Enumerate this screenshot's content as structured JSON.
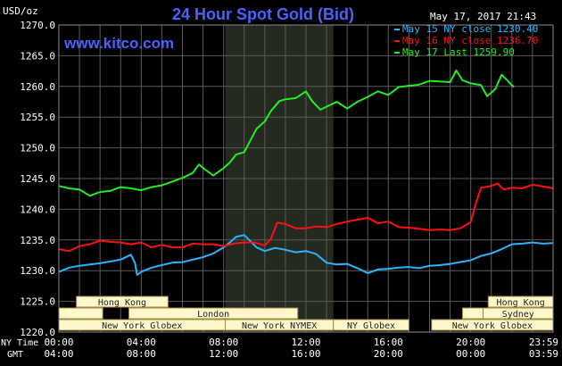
{
  "title": "24 Hour Spot Gold (Bid)",
  "website": "www.kitco.com",
  "timestamp": "May 17, 2017 21:43",
  "colors": {
    "background": "#000000",
    "grid": "#5a5a5a",
    "title": "#4a62ff",
    "website": "#4a62ff",
    "axis_text": "#ffffff",
    "nymex_shade": "#252a20",
    "market_box_fill": "#fff7cc",
    "market_box_stroke": "#a08a40"
  },
  "chart_data": {
    "type": "line",
    "ylabel": "USD/oz",
    "ylim": [
      1220.0,
      1270.0
    ],
    "yticks": [
      "1220.0",
      "1225.0",
      "1230.0",
      "1235.0",
      "1240.0",
      "1245.0",
      "1250.0",
      "1255.0",
      "1260.0",
      "1265.0",
      "1270.0"
    ],
    "x_range_hours": [
      0,
      24
    ],
    "x_row1_label": "NY Time",
    "x_row2_label": "GMT",
    "x_ticks_ny": [
      "00:00",
      "04:00",
      "08:00",
      "12:00",
      "16:00",
      "20:00",
      "23:59"
    ],
    "x_ticks_gmt": [
      "04:00",
      "08:00",
      "12:00",
      "16:00",
      "20:00",
      "00:00",
      "03:59"
    ],
    "grid": true,
    "legend_position": "top-right",
    "series": [
      {
        "name": "May 15 NY close 1230.40",
        "color": "#2ab4ff",
        "points": [
          [
            0,
            1229.8
          ],
          [
            0.5,
            1230.5
          ],
          [
            1,
            1230.8
          ],
          [
            1.5,
            1231
          ],
          [
            2,
            1231.2
          ],
          [
            2.5,
            1231.5
          ],
          [
            3,
            1231.8
          ],
          [
            3.5,
            1232.6
          ],
          [
            3.7,
            1231.2
          ],
          [
            3.8,
            1229.3
          ],
          [
            4,
            1229.8
          ],
          [
            4.5,
            1230.5
          ],
          [
            5,
            1230.9
          ],
          [
            5.5,
            1231.3
          ],
          [
            6,
            1231.4
          ],
          [
            6.5,
            1231.8
          ],
          [
            7,
            1232.2
          ],
          [
            7.5,
            1232.8
          ],
          [
            8,
            1233.8
          ],
          [
            8.3,
            1234.6
          ],
          [
            8.6,
            1235.5
          ],
          [
            9,
            1235.8
          ],
          [
            9.3,
            1234.8
          ],
          [
            9.6,
            1233.8
          ],
          [
            10,
            1233.2
          ],
          [
            10.5,
            1233.7
          ],
          [
            11,
            1233.4
          ],
          [
            11.5,
            1233.0
          ],
          [
            12,
            1233.2
          ],
          [
            12.5,
            1232.7
          ],
          [
            13,
            1231.3
          ],
          [
            13.5,
            1231.0
          ],
          [
            14,
            1231.1
          ],
          [
            14.5,
            1230.4
          ],
          [
            15,
            1229.6
          ],
          [
            15.5,
            1230.2
          ],
          [
            16,
            1230.3
          ],
          [
            16.5,
            1230.5
          ],
          [
            17,
            1230.6
          ],
          [
            17.5,
            1230.4
          ],
          [
            18,
            1230.8
          ],
          [
            18.5,
            1230.9
          ],
          [
            19,
            1231.1
          ],
          [
            19.5,
            1231.4
          ],
          [
            20,
            1231.7
          ],
          [
            20.5,
            1232.4
          ],
          [
            21,
            1232.8
          ],
          [
            21.5,
            1233.5
          ],
          [
            22,
            1234.3
          ],
          [
            22.5,
            1234.4
          ],
          [
            23,
            1234.6
          ],
          [
            23.5,
            1234.4
          ],
          [
            24,
            1234.5
          ]
        ]
      },
      {
        "name": "May 16 NY close 1236.70",
        "color": "#ff1010",
        "points": [
          [
            0,
            1233.5
          ],
          [
            0.5,
            1233.2
          ],
          [
            1,
            1234.0
          ],
          [
            1.5,
            1234.3
          ],
          [
            2,
            1234.9
          ],
          [
            2.5,
            1234.7
          ],
          [
            3,
            1234.6
          ],
          [
            3.5,
            1234.3
          ],
          [
            4,
            1234.6
          ],
          [
            4.5,
            1233.8
          ],
          [
            5,
            1234.2
          ],
          [
            5.5,
            1233.8
          ],
          [
            6,
            1233.8
          ],
          [
            6.5,
            1234.4
          ],
          [
            7,
            1234.3
          ],
          [
            7.5,
            1234.3
          ],
          [
            8,
            1234.0
          ],
          [
            8.5,
            1234.4
          ],
          [
            9,
            1234.6
          ],
          [
            9.5,
            1234.6
          ],
          [
            10,
            1234.1
          ],
          [
            10.3,
            1235.2
          ],
          [
            10.6,
            1237.8
          ],
          [
            11,
            1237.6
          ],
          [
            11.5,
            1236.9
          ],
          [
            12,
            1236.9
          ],
          [
            12.5,
            1237.2
          ],
          [
            13,
            1237.1
          ],
          [
            13.5,
            1237.6
          ],
          [
            14,
            1238.0
          ],
          [
            14.5,
            1238.3
          ],
          [
            15,
            1238.6
          ],
          [
            15.5,
            1237.7
          ],
          [
            16,
            1238.0
          ],
          [
            16.5,
            1237.1
          ],
          [
            17,
            1237.0
          ],
          [
            17.5,
            1236.8
          ],
          [
            18,
            1236.6
          ],
          [
            18.5,
            1236.7
          ],
          [
            19,
            1236.6
          ],
          [
            19.5,
            1236.9
          ],
          [
            20,
            1237.9
          ],
          [
            20.2,
            1240.4
          ],
          [
            20.5,
            1243.5
          ],
          [
            21,
            1243.8
          ],
          [
            21.3,
            1244.2
          ],
          [
            21.6,
            1243.2
          ],
          [
            22,
            1243.5
          ],
          [
            22.5,
            1243.4
          ],
          [
            23,
            1244.0
          ],
          [
            23.5,
            1243.7
          ],
          [
            24,
            1243.4
          ]
        ]
      },
      {
        "name": "May 17 Last 1259.90",
        "color": "#22ee22",
        "points": [
          [
            0,
            1243.8
          ],
          [
            0.5,
            1243.4
          ],
          [
            1,
            1243.2
          ],
          [
            1.5,
            1242.2
          ],
          [
            2,
            1242.8
          ],
          [
            2.5,
            1243.0
          ],
          [
            3,
            1243.6
          ],
          [
            3.5,
            1243.4
          ],
          [
            4,
            1243.1
          ],
          [
            4.5,
            1243.6
          ],
          [
            5,
            1243.9
          ],
          [
            5.5,
            1244.5
          ],
          [
            6,
            1245.1
          ],
          [
            6.5,
            1245.9
          ],
          [
            6.8,
            1247.3
          ],
          [
            7,
            1246.7
          ],
          [
            7.5,
            1245.5
          ],
          [
            8,
            1246.7
          ],
          [
            8.3,
            1247.6
          ],
          [
            8.6,
            1248.9
          ],
          [
            9,
            1249.3
          ],
          [
            9.3,
            1251.2
          ],
          [
            9.6,
            1253.1
          ],
          [
            10,
            1254.3
          ],
          [
            10.3,
            1256.0
          ],
          [
            10.7,
            1257.6
          ],
          [
            11,
            1257.9
          ],
          [
            11.5,
            1258.1
          ],
          [
            12,
            1259.2
          ],
          [
            12.3,
            1257.6
          ],
          [
            12.7,
            1256.2
          ],
          [
            13,
            1256.7
          ],
          [
            13.5,
            1257.5
          ],
          [
            14,
            1256.4
          ],
          [
            14.5,
            1257.5
          ],
          [
            15,
            1258.3
          ],
          [
            15.5,
            1259.2
          ],
          [
            16,
            1258.6
          ],
          [
            16.5,
            1259.9
          ],
          [
            17,
            1260.1
          ],
          [
            17.5,
            1260.3
          ],
          [
            18,
            1260.9
          ],
          [
            18.5,
            1260.8
          ],
          [
            19,
            1260.7
          ],
          [
            19.3,
            1262.6
          ],
          [
            19.6,
            1261.0
          ],
          [
            20,
            1260.5
          ],
          [
            20.5,
            1260.2
          ],
          [
            20.8,
            1258.4
          ],
          [
            21.2,
            1259.6
          ],
          [
            21.5,
            1261.9
          ],
          [
            21.8,
            1260.9
          ],
          [
            22,
            1260.2
          ],
          [
            22.1,
            1259.9
          ]
        ]
      }
    ],
    "shaded_region": {
      "name": "New York NYMEX",
      "start": 8.08,
      "end": 13.33
    },
    "market_rows": [
      [
        {
          "name": "Hong Kong",
          "start": 0.85,
          "end": 5.3
        },
        {
          "name": "Hong Kong",
          "start": 20.85,
          "end": 24
        }
      ],
      [
        {
          "name": "",
          "start": 0,
          "end": 2.13
        },
        {
          "name": "London",
          "start": 3.4,
          "end": 11.6
        },
        {
          "name": "",
          "start": 19.6,
          "end": 20.6
        },
        {
          "name": "Sydney",
          "start": 20.6,
          "end": 24
        }
      ],
      [
        {
          "name": "New York Globex",
          "start": 0,
          "end": 8.08
        },
        {
          "name": "New York NYMEX",
          "start": 8.08,
          "end": 13.33
        },
        {
          "name": "NY Globex",
          "start": 13.33,
          "end": 17.0
        },
        {
          "name": "New York Globex",
          "start": 18.1,
          "end": 24
        }
      ]
    ]
  }
}
